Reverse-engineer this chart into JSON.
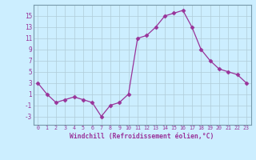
{
  "x": [
    0,
    1,
    2,
    3,
    4,
    5,
    6,
    7,
    8,
    9,
    10,
    11,
    12,
    13,
    14,
    15,
    16,
    17,
    18,
    19,
    20,
    21,
    22,
    23
  ],
  "y": [
    3,
    1,
    -0.5,
    0,
    0.5,
    0,
    -0.5,
    -3,
    -1,
    -0.5,
    1,
    11,
    11.5,
    13,
    15,
    15.5,
    16,
    13,
    9,
    7,
    5.5,
    5,
    4.5,
    3
  ],
  "line_color": "#993399",
  "marker": "D",
  "marker_size": 2.5,
  "bg_color": "#cceeff",
  "grid_color": "#b0ccd8",
  "xlabel": "Windchill (Refroidissement éolien,°C)",
  "ylabel_ticks": [
    -3,
    -1,
    1,
    3,
    5,
    7,
    9,
    11,
    13,
    15
  ],
  "xticks": [
    0,
    1,
    2,
    3,
    4,
    5,
    6,
    7,
    8,
    9,
    10,
    11,
    12,
    13,
    14,
    15,
    16,
    17,
    18,
    19,
    20,
    21,
    22,
    23
  ],
  "ylim": [
    -4.5,
    17
  ],
  "xlim": [
    -0.5,
    23.5
  ],
  "spine_color": "#7799aa"
}
